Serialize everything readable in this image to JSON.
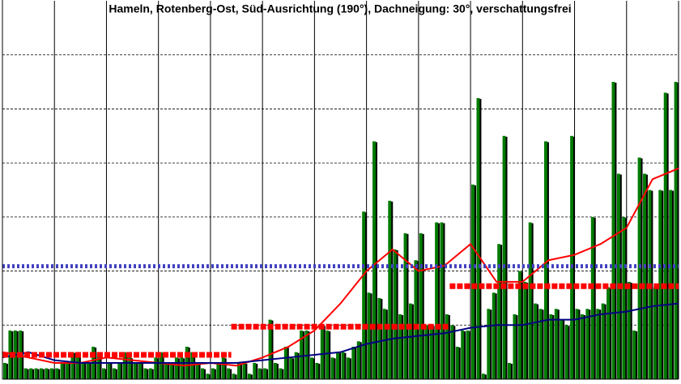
{
  "chart_data": {
    "type": "bar",
    "subtitle": "Hameln, Rotenberg-Ost, Süd-Ausrichtung (190°), Dachneigung: 30°, verschattungsfrei",
    "color": "#007a00",
    "values": [
      0.3,
      0.9,
      0.9,
      0.9,
      0.2,
      0.2,
      0.2,
      0.2,
      0.2,
      0.2,
      0.2,
      0.3,
      0.3,
      0.5,
      0.5,
      0.3,
      0.3,
      0.6,
      0.5,
      0.2,
      0.3,
      0.2,
      0.3,
      0.5,
      0.4,
      0.3,
      0.3,
      0.2,
      0.2,
      0.4,
      0.5,
      0.3,
      0.3,
      0.4,
      0.4,
      0.6,
      0.5,
      0.3,
      0.2,
      0.1,
      0.2,
      0.3,
      0.4,
      0.2,
      0.1,
      0.3,
      0.3,
      0.1,
      0.3,
      0.2,
      0.2,
      1.1,
      0.3,
      0.2,
      0.6,
      0.4,
      0.5,
      0.9,
      0.9,
      0.4,
      0.3,
      1.0,
      0.9,
      0.4,
      0.5,
      0.5,
      0.4,
      0.6,
      0.7,
      3.1,
      1.6,
      4.4,
      1.5,
      1.3,
      3.3,
      2.4,
      1.2,
      2.7,
      1.4,
      2.2,
      2.7,
      1.0,
      1.0,
      2.9,
      2.9,
      1.2,
      1.0,
      0.6,
      0.9,
      0.9,
      3.6,
      5.2,
      0.1,
      1.3,
      1.6,
      2.5,
      4.5,
      0.3,
      1.2,
      2.0,
      1.8,
      2.9,
      1.4,
      1.3,
      4.4,
      1.2,
      1.3,
      1.1,
      1.0,
      4.5,
      1.3,
      1.2,
      1.3,
      3.0,
      1.3,
      1.4,
      1.7,
      5.5,
      3.8,
      3.0,
      1.8,
      0.9,
      4.1,
      3.8,
      3.5,
      1.7,
      3.5,
      5.3,
      3.5,
      5.5
    ],
    "lines": [
      {
        "color": "#ff0000",
        "dash": "none",
        "width": 2,
        "x": [
          0,
          5,
          10,
          15,
          20,
          25,
          30,
          35,
          40,
          45,
          50,
          55,
          60,
          65,
          70,
          75,
          80,
          85,
          90,
          95,
          100,
          105,
          110,
          115,
          120,
          125,
          130
        ],
        "values": [
          0.5,
          0.4,
          0.3,
          0.3,
          0.4,
          0.35,
          0.3,
          0.25,
          0.3,
          0.25,
          0.4,
          0.6,
          0.9,
          1.4,
          2.0,
          2.4,
          2.0,
          2.1,
          2.5,
          1.8,
          1.8,
          2.2,
          2.3,
          2.5,
          2.8,
          3.7,
          3.9
        ]
      },
      {
        "color": "#000080",
        "dash": "none",
        "width": 2,
        "x": [
          0,
          5,
          10,
          15,
          20,
          25,
          30,
          35,
          40,
          45,
          50,
          55,
          60,
          65,
          70,
          75,
          80,
          85,
          90,
          95,
          100,
          105,
          110,
          115,
          120,
          125,
          130
        ],
        "values": [
          0.4,
          0.5,
          0.35,
          0.3,
          0.3,
          0.3,
          0.3,
          0.3,
          0.3,
          0.3,
          0.35,
          0.4,
          0.45,
          0.5,
          0.65,
          0.75,
          0.8,
          0.85,
          0.95,
          1.0,
          1.0,
          1.1,
          1.1,
          1.2,
          1.25,
          1.35,
          1.4
        ]
      },
      {
        "color": "#4040c0",
        "dash": "3 3",
        "width": 5,
        "x": [
          0,
          130
        ],
        "values": [
          2.09,
          2.09
        ]
      },
      {
        "color": "#ff0000",
        "dash": "7 2",
        "width": 7,
        "x": [
          0,
          44,
          44,
          44,
          86,
          86,
          86,
          130
        ],
        "values": [
          0.45,
          0.45,
          null,
          0.97,
          0.97,
          null,
          1.72,
          1.72
        ]
      }
    ],
    "xlim": [
      0,
      130
    ],
    "xticks": [
      0,
      10,
      20,
      30,
      40,
      50,
      60,
      70,
      80,
      90,
      100,
      110,
      120,
      130
    ],
    "ylim": [
      0,
      7
    ],
    "yticks": [
      1,
      2,
      3,
      4,
      5,
      6
    ],
    "grid": true
  }
}
